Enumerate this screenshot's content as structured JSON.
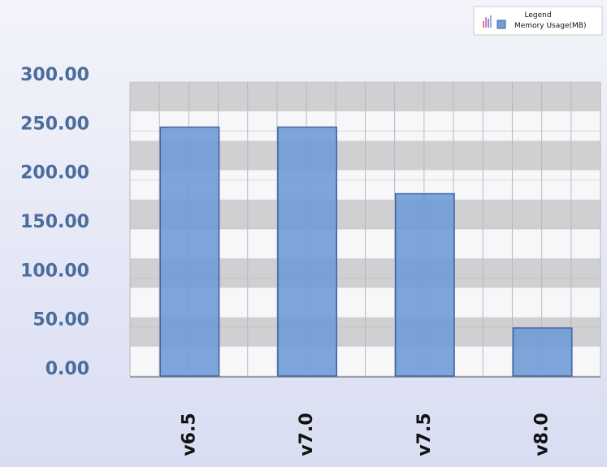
{
  "chart_data": {
    "type": "bar",
    "categories": [
      "v6.5",
      "v7.0",
      "v7.5",
      "v8.0"
    ],
    "series": [
      {
        "name": "Memory Usage(MB)",
        "color": "#6f9bd6",
        "values": [
          254,
          254,
          186,
          49
        ]
      }
    ],
    "ylim": [
      0,
      300
    ],
    "yticks": [
      {
        "value": 0,
        "label": "0.00"
      },
      {
        "value": 50,
        "label": "50.00"
      },
      {
        "value": 100,
        "label": "100.00"
      },
      {
        "value": 150,
        "label": "150.00"
      },
      {
        "value": 200,
        "label": "200.00"
      },
      {
        "value": 250,
        "label": "250.00"
      },
      {
        "value": 300,
        "label": "300.00"
      }
    ],
    "legend": {
      "title": "Legend",
      "position": "top-right"
    },
    "grid": true
  }
}
